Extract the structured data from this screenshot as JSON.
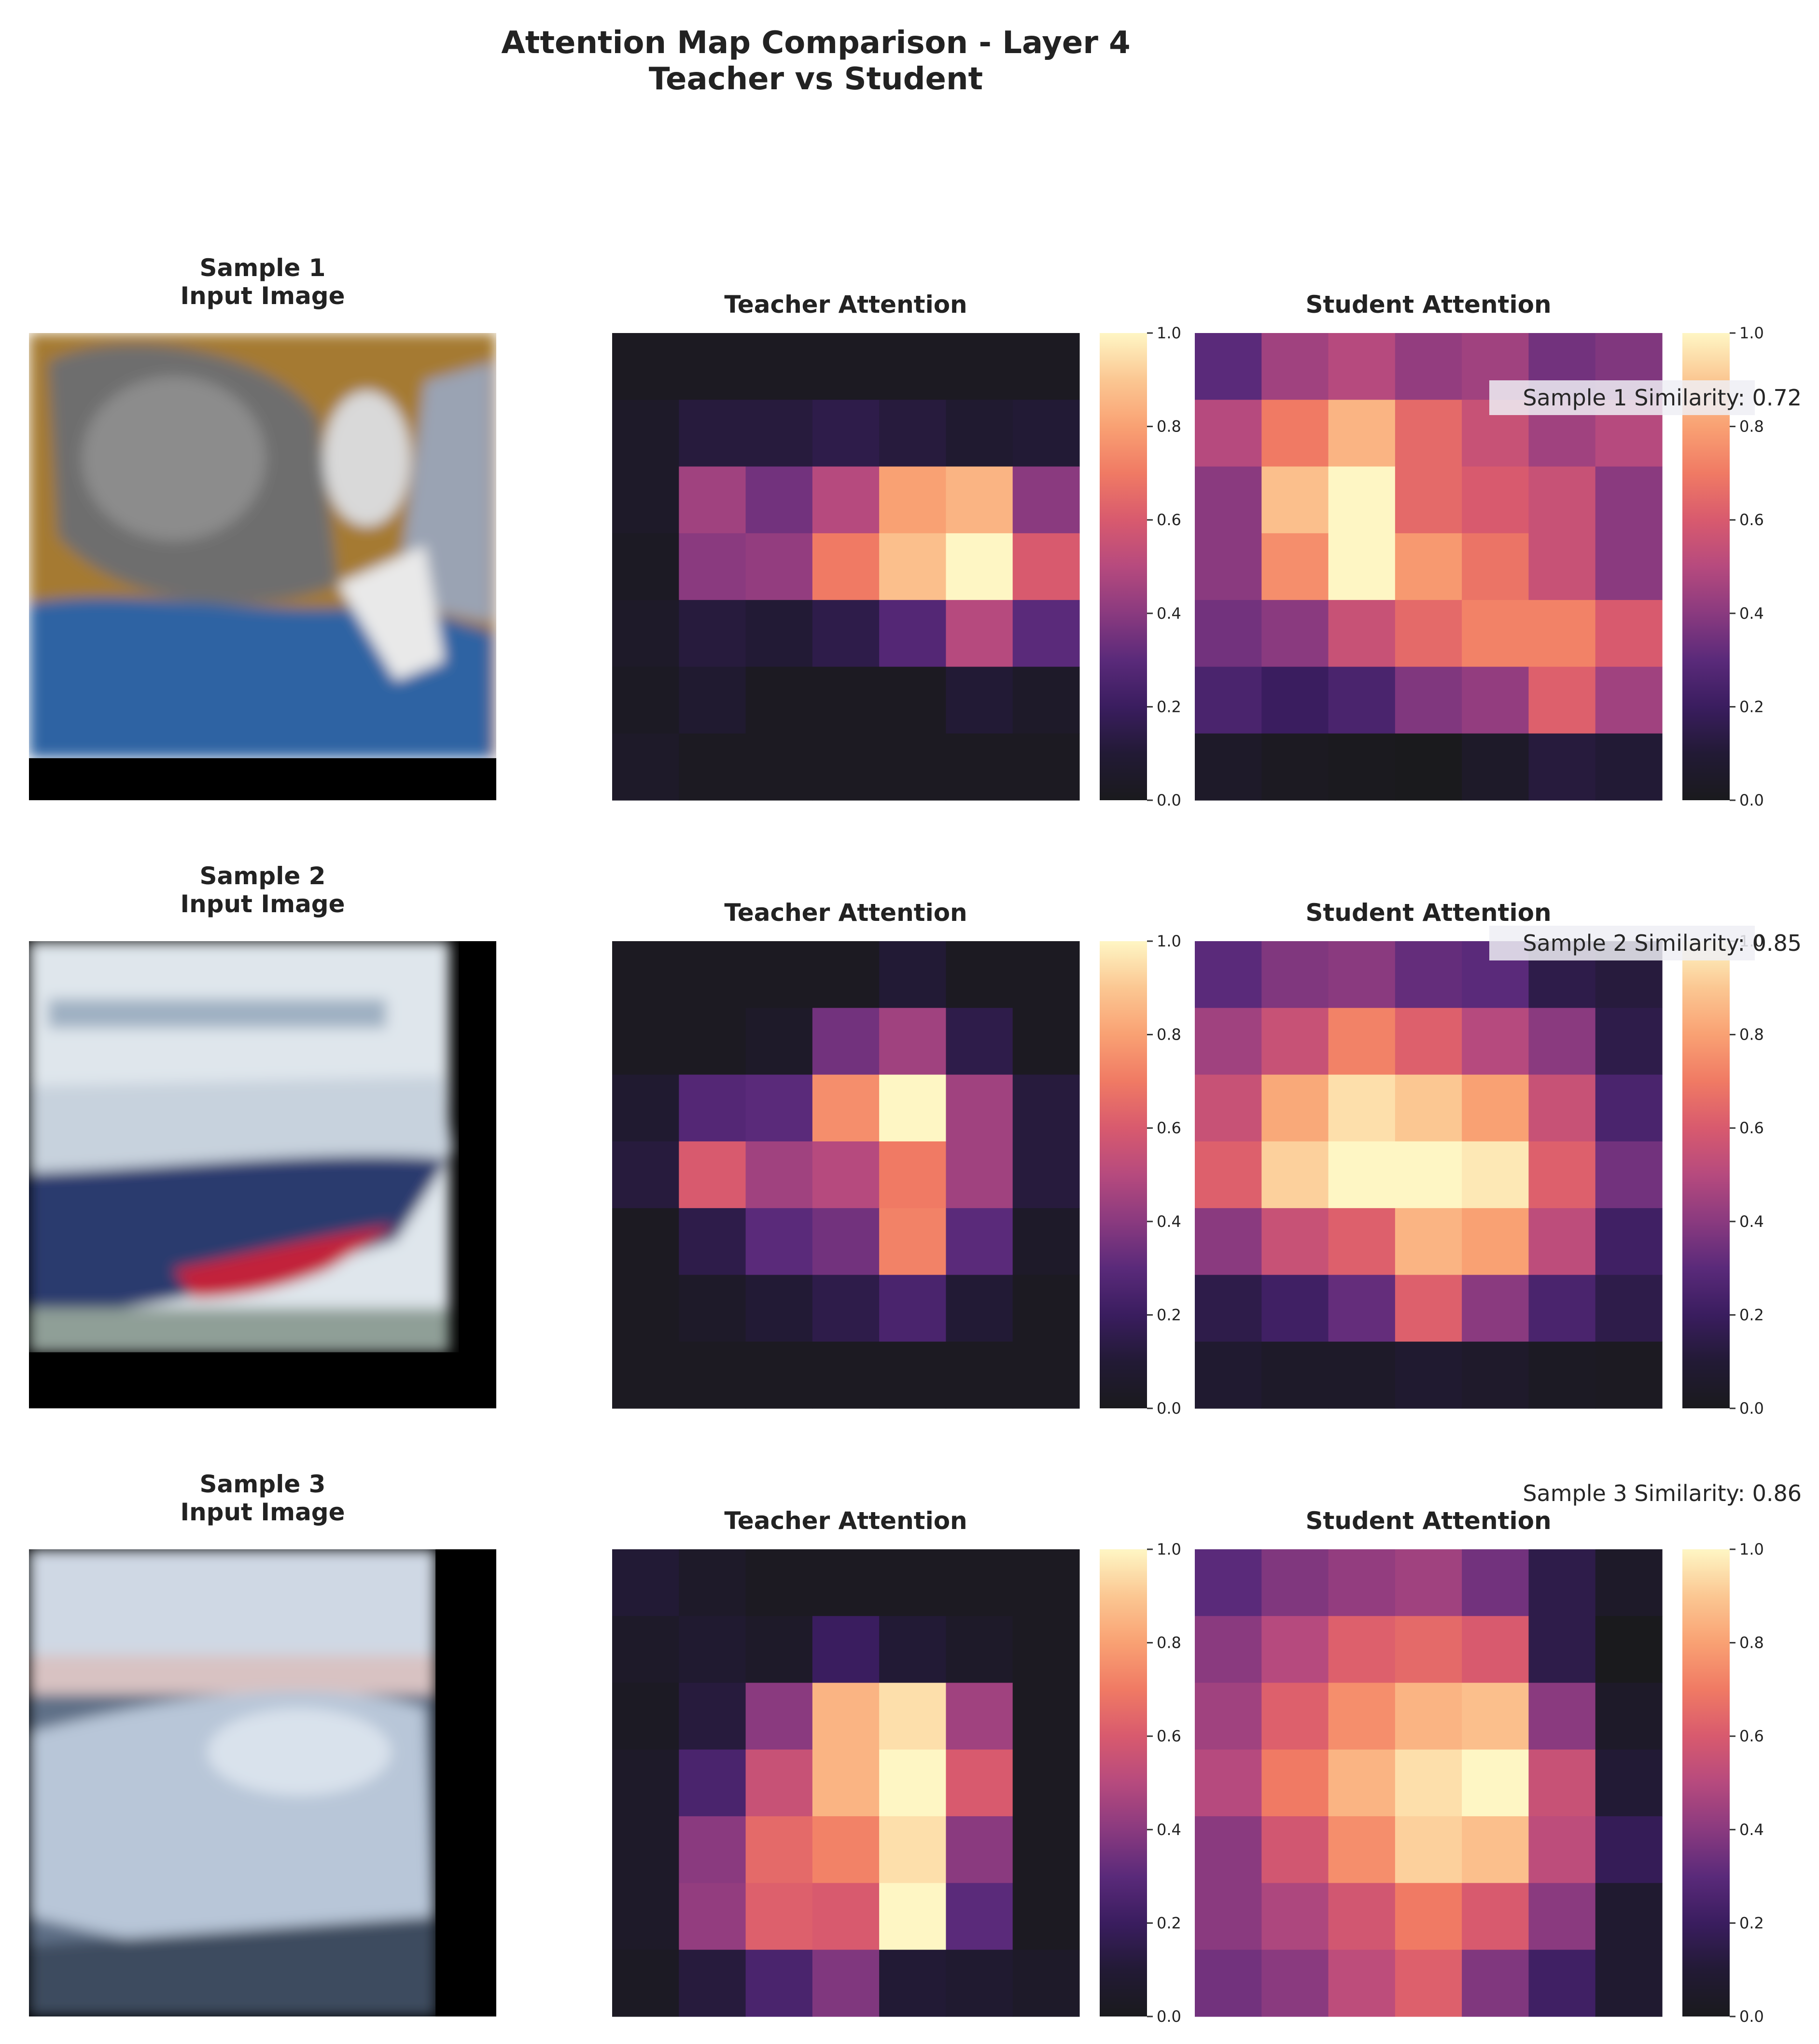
{
  "figure": {
    "title_line1": "Attention Map Comparison - Layer 4",
    "title_line2": "Teacher vs Student"
  },
  "colorscale": {
    "name": "magma",
    "stops": [
      "#1a1a1d",
      "#221a35",
      "#3a1d5f",
      "#5a2a7a",
      "#8a3a7f",
      "#b64a7e",
      "#d85a6e",
      "#f07a64",
      "#f9a173",
      "#fbc792",
      "#fef6c4"
    ],
    "ticks": [
      "0.0",
      "0.2",
      "0.4",
      "0.6",
      "0.8",
      "1.0"
    ]
  },
  "chart_data": [
    {
      "type": "heatmap",
      "sample_title": "Sample 1",
      "input_title": "Input Image",
      "input_image": "cat",
      "teacher_title": "Teacher Attention",
      "student_title": "Student Attention",
      "similarity_label": "Sample 1 Similarity: 0.72",
      "similarity": 0.72,
      "range": [
        0,
        1
      ],
      "teacher": [
        [
          0.02,
          0.02,
          0.02,
          0.02,
          0.02,
          0.02,
          0.02
        ],
        [
          0.05,
          0.12,
          0.12,
          0.15,
          0.12,
          0.08,
          0.1
        ],
        [
          0.05,
          0.45,
          0.35,
          0.5,
          0.8,
          0.85,
          0.4
        ],
        [
          0.03,
          0.4,
          0.42,
          0.7,
          0.88,
          1.0,
          0.6
        ],
        [
          0.05,
          0.12,
          0.1,
          0.15,
          0.28,
          0.5,
          0.3
        ],
        [
          0.03,
          0.08,
          0.02,
          0.02,
          0.02,
          0.1,
          0.05
        ],
        [
          0.05,
          0.02,
          0.02,
          0.02,
          0.02,
          0.02,
          0.02
        ]
      ],
      "student": [
        [
          0.3,
          0.45,
          0.5,
          0.42,
          0.45,
          0.35,
          0.38
        ],
        [
          0.5,
          0.7,
          0.85,
          0.65,
          0.55,
          0.45,
          0.5
        ],
        [
          0.4,
          0.88,
          1.0,
          0.65,
          0.6,
          0.55,
          0.4
        ],
        [
          0.4,
          0.75,
          1.0,
          0.78,
          0.68,
          0.55,
          0.4
        ],
        [
          0.35,
          0.4,
          0.55,
          0.65,
          0.72,
          0.72,
          0.6
        ],
        [
          0.25,
          0.2,
          0.25,
          0.38,
          0.42,
          0.62,
          0.45
        ],
        [
          0.05,
          0.02,
          0.01,
          0.0,
          0.05,
          0.12,
          0.1
        ]
      ]
    },
    {
      "type": "heatmap",
      "sample_title": "Sample 2",
      "input_title": "Input Image",
      "input_image": "ship",
      "teacher_title": "Teacher Attention",
      "student_title": "Student Attention",
      "similarity_label": "Sample 2 Similarity: 0.85",
      "similarity": 0.85,
      "range": [
        0,
        1
      ],
      "teacher": [
        [
          0.02,
          0.02,
          0.02,
          0.02,
          0.1,
          0.02,
          0.02
        ],
        [
          0.02,
          0.02,
          0.05,
          0.35,
          0.45,
          0.15,
          0.02
        ],
        [
          0.08,
          0.28,
          0.3,
          0.75,
          1.0,
          0.45,
          0.12
        ],
        [
          0.12,
          0.6,
          0.45,
          0.5,
          0.7,
          0.45,
          0.12
        ],
        [
          0.02,
          0.15,
          0.3,
          0.35,
          0.72,
          0.3,
          0.05
        ],
        [
          0.02,
          0.05,
          0.1,
          0.15,
          0.25,
          0.1,
          0.02
        ],
        [
          0.02,
          0.02,
          0.02,
          0.02,
          0.02,
          0.02,
          0.02
        ]
      ],
      "student": [
        [
          0.3,
          0.38,
          0.4,
          0.32,
          0.3,
          0.15,
          0.12
        ],
        [
          0.45,
          0.55,
          0.72,
          0.62,
          0.5,
          0.4,
          0.15
        ],
        [
          0.55,
          0.82,
          0.95,
          0.9,
          0.8,
          0.55,
          0.25
        ],
        [
          0.62,
          0.92,
          1.0,
          1.0,
          0.97,
          0.62,
          0.35
        ],
        [
          0.4,
          0.55,
          0.62,
          0.85,
          0.8,
          0.52,
          0.22
        ],
        [
          0.15,
          0.22,
          0.32,
          0.62,
          0.4,
          0.25,
          0.15
        ],
        [
          0.08,
          0.05,
          0.05,
          0.08,
          0.06,
          0.03,
          0.02
        ]
      ]
    },
    {
      "type": "heatmap",
      "sample_title": "Sample 3",
      "input_title": "Input Image",
      "input_image": "boat",
      "teacher_title": "Teacher Attention",
      "student_title": "Student Attention",
      "similarity_label": "Sample 3 Similarity: 0.86",
      "similarity": 0.86,
      "range": [
        0,
        1
      ],
      "teacher": [
        [
          0.1,
          0.05,
          0.02,
          0.02,
          0.02,
          0.02,
          0.02
        ],
        [
          0.05,
          0.08,
          0.05,
          0.2,
          0.1,
          0.05,
          0.02
        ],
        [
          0.03,
          0.12,
          0.4,
          0.85,
          0.95,
          0.45,
          0.02
        ],
        [
          0.05,
          0.25,
          0.55,
          0.85,
          1.0,
          0.6,
          0.02
        ],
        [
          0.05,
          0.4,
          0.65,
          0.72,
          0.95,
          0.4,
          0.02
        ],
        [
          0.05,
          0.42,
          0.62,
          0.6,
          1.0,
          0.3,
          0.02
        ],
        [
          0.03,
          0.12,
          0.25,
          0.38,
          0.1,
          0.08,
          0.05
        ]
      ],
      "student": [
        [
          0.3,
          0.38,
          0.42,
          0.45,
          0.35,
          0.15,
          0.05
        ],
        [
          0.4,
          0.5,
          0.62,
          0.65,
          0.6,
          0.15,
          0.0
        ],
        [
          0.45,
          0.62,
          0.75,
          0.85,
          0.88,
          0.4,
          0.05
        ],
        [
          0.5,
          0.7,
          0.85,
          0.95,
          1.0,
          0.55,
          0.1
        ],
        [
          0.4,
          0.58,
          0.75,
          0.92,
          0.88,
          0.52,
          0.18
        ],
        [
          0.4,
          0.48,
          0.58,
          0.7,
          0.6,
          0.4,
          0.08
        ],
        [
          0.35,
          0.4,
          0.52,
          0.62,
          0.38,
          0.22,
          0.08
        ]
      ]
    }
  ]
}
